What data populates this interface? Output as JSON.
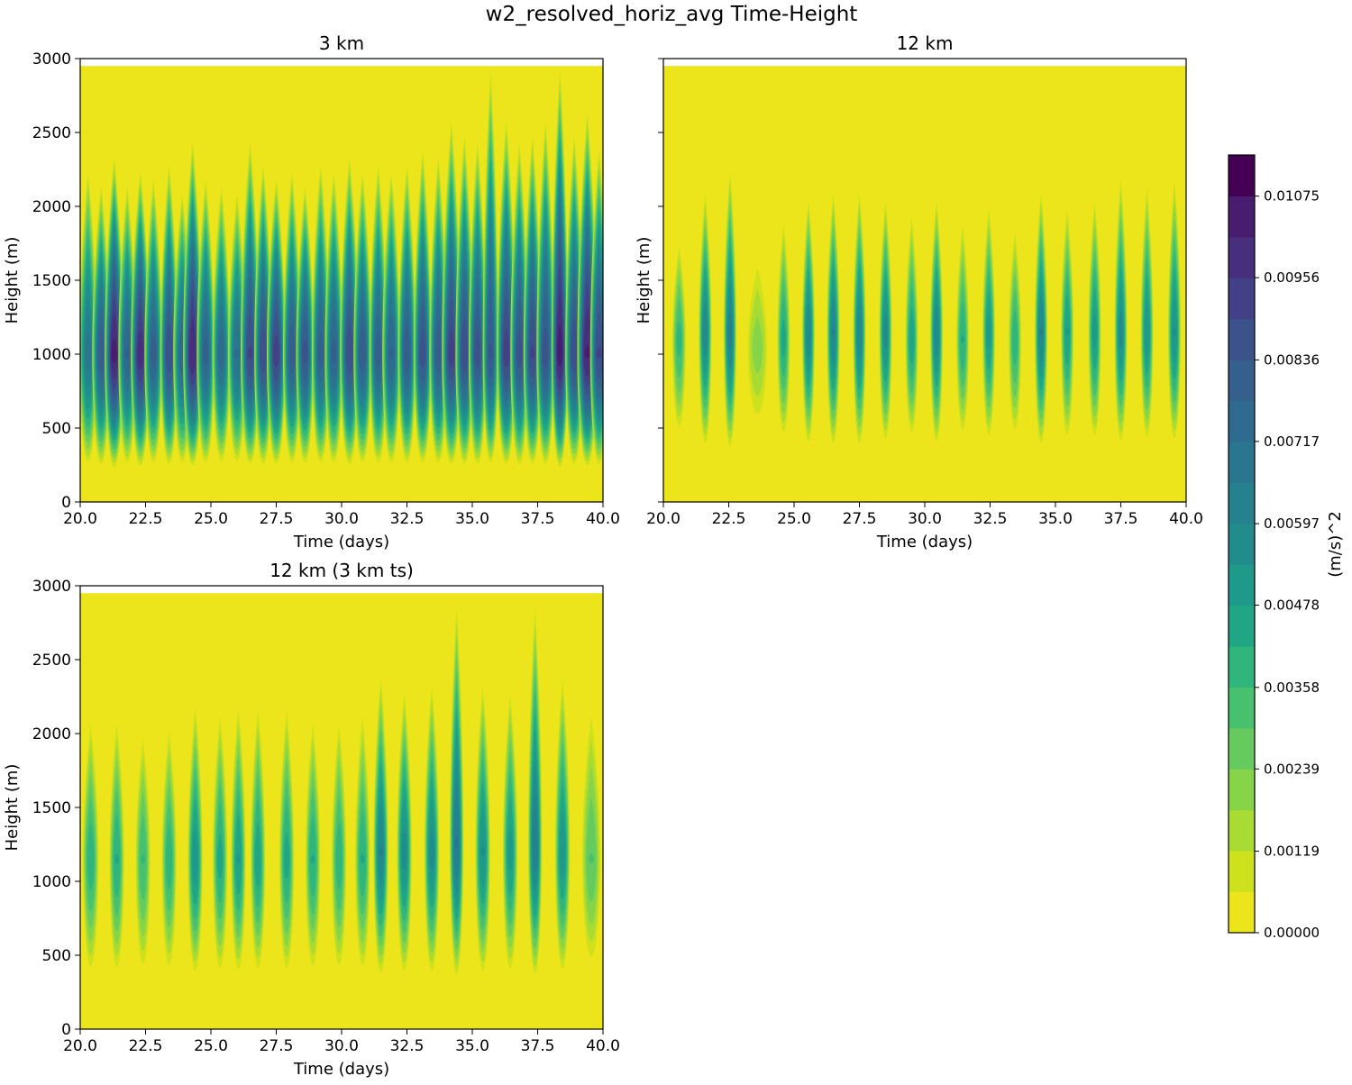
{
  "figure_title": "w2_resolved_horiz_avg Time-Height",
  "chart_data": [
    {
      "type": "heatmap",
      "title": "3 km",
      "xlabel": "Time (days)",
      "ylabel": "Height (m)",
      "xlim": [
        20.0,
        40.0
      ],
      "ylim": [
        0,
        3000
      ],
      "data_top": 2950,
      "xticks": [
        "20.0",
        "22.5",
        "25.0",
        "27.5",
        "30.0",
        "32.5",
        "35.0",
        "37.5",
        "40.0"
      ],
      "yticks": [
        "0",
        "500",
        "1000",
        "1500",
        "2000",
        "2500",
        "3000"
      ],
      "show_yticklabels": true,
      "base_level": 0.00045,
      "cycles": [
        {
          "t": 20.3,
          "w": 0.16,
          "amp": 0.0068,
          "bottom": 260,
          "top": 2250,
          "center": 1000
        },
        {
          "t": 20.8,
          "w": 0.16,
          "amp": 0.0082,
          "bottom": 250,
          "top": 2150,
          "center": 1000
        },
        {
          "t": 21.3,
          "w": 0.17,
          "amp": 0.0103,
          "bottom": 230,
          "top": 2350,
          "center": 1000
        },
        {
          "t": 21.8,
          "w": 0.16,
          "amp": 0.0078,
          "bottom": 260,
          "top": 2150,
          "center": 1000
        },
        {
          "t": 22.3,
          "w": 0.17,
          "amp": 0.0099,
          "bottom": 240,
          "top": 2250,
          "center": 1000
        },
        {
          "t": 22.8,
          "w": 0.16,
          "amp": 0.008,
          "bottom": 260,
          "top": 2200,
          "center": 1000
        },
        {
          "t": 23.4,
          "w": 0.16,
          "amp": 0.0088,
          "bottom": 250,
          "top": 2300,
          "center": 1000
        },
        {
          "t": 23.9,
          "w": 0.16,
          "amp": 0.0076,
          "bottom": 260,
          "top": 2100,
          "center": 1000
        },
        {
          "t": 24.3,
          "w": 0.17,
          "amp": 0.0101,
          "bottom": 240,
          "top": 2450,
          "center": 1000
        },
        {
          "t": 24.8,
          "w": 0.16,
          "amp": 0.0079,
          "bottom": 260,
          "top": 2200,
          "center": 1000
        },
        {
          "t": 25.4,
          "w": 0.16,
          "amp": 0.0075,
          "bottom": 270,
          "top": 2150,
          "center": 1000
        },
        {
          "t": 26.0,
          "w": 0.16,
          "amp": 0.0072,
          "bottom": 270,
          "top": 2100,
          "center": 1000
        },
        {
          "t": 26.5,
          "w": 0.17,
          "amp": 0.009,
          "bottom": 250,
          "top": 2450,
          "center": 1000
        },
        {
          "t": 27.0,
          "w": 0.16,
          "amp": 0.0088,
          "bottom": 250,
          "top": 2300,
          "center": 1000
        },
        {
          "t": 27.5,
          "w": 0.17,
          "amp": 0.0092,
          "bottom": 250,
          "top": 2200,
          "center": 1000
        },
        {
          "t": 28.1,
          "w": 0.16,
          "amp": 0.0082,
          "bottom": 260,
          "top": 2250,
          "center": 1000
        },
        {
          "t": 28.6,
          "w": 0.16,
          "amp": 0.0085,
          "bottom": 260,
          "top": 2150,
          "center": 1000
        },
        {
          "t": 29.2,
          "w": 0.16,
          "amp": 0.008,
          "bottom": 260,
          "top": 2300,
          "center": 1000
        },
        {
          "t": 29.7,
          "w": 0.16,
          "amp": 0.0079,
          "bottom": 260,
          "top": 2250,
          "center": 1000
        },
        {
          "t": 30.3,
          "w": 0.17,
          "amp": 0.0088,
          "bottom": 250,
          "top": 2350,
          "center": 1000
        },
        {
          "t": 30.8,
          "w": 0.16,
          "amp": 0.0082,
          "bottom": 260,
          "top": 2250,
          "center": 1000
        },
        {
          "t": 31.4,
          "w": 0.16,
          "amp": 0.008,
          "bottom": 260,
          "top": 2300,
          "center": 1000
        },
        {
          "t": 31.9,
          "w": 0.16,
          "amp": 0.0078,
          "bottom": 260,
          "top": 2250,
          "center": 1000
        },
        {
          "t": 32.5,
          "w": 0.16,
          "amp": 0.0082,
          "bottom": 260,
          "top": 2300,
          "center": 1000
        },
        {
          "t": 33.1,
          "w": 0.16,
          "amp": 0.0086,
          "bottom": 260,
          "top": 2400,
          "center": 1000
        },
        {
          "t": 33.7,
          "w": 0.16,
          "amp": 0.0082,
          "bottom": 260,
          "top": 2350,
          "center": 1000
        },
        {
          "t": 34.2,
          "w": 0.17,
          "amp": 0.0092,
          "bottom": 250,
          "top": 2600,
          "center": 1000
        },
        {
          "t": 34.7,
          "w": 0.16,
          "amp": 0.0088,
          "bottom": 250,
          "top": 2500,
          "center": 1000
        },
        {
          "t": 35.2,
          "w": 0.16,
          "amp": 0.0086,
          "bottom": 250,
          "top": 2450,
          "center": 1000
        },
        {
          "t": 35.7,
          "w": 0.14,
          "amp": 0.0084,
          "bottom": 260,
          "top": 2940,
          "center": 1000
        },
        {
          "t": 36.3,
          "w": 0.17,
          "amp": 0.0092,
          "bottom": 250,
          "top": 2600,
          "center": 1000
        },
        {
          "t": 36.8,
          "w": 0.16,
          "amp": 0.0086,
          "bottom": 250,
          "top": 2450,
          "center": 1000
        },
        {
          "t": 37.3,
          "w": 0.16,
          "amp": 0.009,
          "bottom": 250,
          "top": 2500,
          "center": 1000
        },
        {
          "t": 37.8,
          "w": 0.16,
          "amp": 0.0086,
          "bottom": 250,
          "top": 2600,
          "center": 1000
        },
        {
          "t": 38.35,
          "w": 0.15,
          "amp": 0.0104,
          "bottom": 230,
          "top": 2940,
          "center": 1000
        },
        {
          "t": 38.9,
          "w": 0.16,
          "amp": 0.0088,
          "bottom": 250,
          "top": 2500,
          "center": 1000
        },
        {
          "t": 39.4,
          "w": 0.18,
          "amp": 0.0102,
          "bottom": 240,
          "top": 2650,
          "center": 1000
        },
        {
          "t": 39.85,
          "w": 0.16,
          "amp": 0.009,
          "bottom": 250,
          "top": 2400,
          "center": 1000
        }
      ]
    },
    {
      "type": "heatmap",
      "title": "12 km",
      "xlabel": "Time (days)",
      "ylabel": "Height (m)",
      "xlim": [
        20.0,
        40.0
      ],
      "ylim": [
        0,
        3000
      ],
      "data_top": 2950,
      "xticks": [
        "20.0",
        "22.5",
        "25.0",
        "27.5",
        "30.0",
        "32.5",
        "35.0",
        "37.5",
        "40.0"
      ],
      "yticks": [
        "0",
        "500",
        "1000",
        "1500",
        "2000",
        "2500",
        "3000"
      ],
      "show_yticklabels": false,
      "base_level": 0.0,
      "cycles": [
        {
          "t": 20.6,
          "w": 0.13,
          "amp": 0.0038,
          "bottom": 450,
          "top": 1800,
          "center": 1100
        },
        {
          "t": 21.6,
          "w": 0.12,
          "amp": 0.0058,
          "bottom": 350,
          "top": 2150,
          "center": 1150
        },
        {
          "t": 22.55,
          "w": 0.12,
          "amp": 0.0062,
          "bottom": 330,
          "top": 2300,
          "center": 1150
        },
        {
          "t": 23.6,
          "w": 0.2,
          "amp": 0.0021,
          "bottom": 500,
          "top": 1700,
          "center": 1050
        },
        {
          "t": 24.6,
          "w": 0.12,
          "amp": 0.0044,
          "bottom": 420,
          "top": 1950,
          "center": 1100
        },
        {
          "t": 25.55,
          "w": 0.12,
          "amp": 0.0058,
          "bottom": 360,
          "top": 2100,
          "center": 1150
        },
        {
          "t": 26.5,
          "w": 0.12,
          "amp": 0.006,
          "bottom": 350,
          "top": 2150,
          "center": 1150
        },
        {
          "t": 27.5,
          "w": 0.12,
          "amp": 0.0059,
          "bottom": 350,
          "top": 2150,
          "center": 1150
        },
        {
          "t": 28.5,
          "w": 0.12,
          "amp": 0.0056,
          "bottom": 380,
          "top": 2100,
          "center": 1150
        },
        {
          "t": 29.5,
          "w": 0.12,
          "amp": 0.0046,
          "bottom": 420,
          "top": 2000,
          "center": 1100
        },
        {
          "t": 30.45,
          "w": 0.12,
          "amp": 0.0058,
          "bottom": 360,
          "top": 2100,
          "center": 1150
        },
        {
          "t": 31.45,
          "w": 0.12,
          "amp": 0.0042,
          "bottom": 430,
          "top": 1950,
          "center": 1100
        },
        {
          "t": 32.45,
          "w": 0.12,
          "amp": 0.005,
          "bottom": 400,
          "top": 2050,
          "center": 1150
        },
        {
          "t": 33.45,
          "w": 0.12,
          "amp": 0.004,
          "bottom": 430,
          "top": 1900,
          "center": 1100
        },
        {
          "t": 34.45,
          "w": 0.12,
          "amp": 0.006,
          "bottom": 350,
          "top": 2150,
          "center": 1150
        },
        {
          "t": 35.45,
          "w": 0.12,
          "amp": 0.0048,
          "bottom": 400,
          "top": 2050,
          "center": 1150
        },
        {
          "t": 36.5,
          "w": 0.12,
          "amp": 0.005,
          "bottom": 400,
          "top": 2100,
          "center": 1150
        },
        {
          "t": 37.5,
          "w": 0.12,
          "amp": 0.0056,
          "bottom": 370,
          "top": 2250,
          "center": 1150
        },
        {
          "t": 38.5,
          "w": 0.12,
          "amp": 0.0052,
          "bottom": 390,
          "top": 2200,
          "center": 1150
        },
        {
          "t": 39.55,
          "w": 0.12,
          "amp": 0.0054,
          "bottom": 380,
          "top": 2250,
          "center": 1150
        }
      ]
    },
    {
      "type": "heatmap",
      "title": "12 km (3 km ts)",
      "xlabel": "Time (days)",
      "ylabel": "Height (m)",
      "xlim": [
        20.0,
        40.0
      ],
      "ylim": [
        0,
        3000
      ],
      "data_top": 2950,
      "xticks": [
        "20.0",
        "22.5",
        "25.0",
        "27.5",
        "30.0",
        "32.5",
        "35.0",
        "37.5",
        "40.0"
      ],
      "yticks": [
        "0",
        "500",
        "1000",
        "1500",
        "2000",
        "2500",
        "3000"
      ],
      "show_yticklabels": true,
      "base_level": 0.0,
      "cycles": [
        {
          "t": 20.4,
          "w": 0.15,
          "amp": 0.004,
          "bottom": 350,
          "top": 2150,
          "center": 1150
        },
        {
          "t": 21.4,
          "w": 0.14,
          "amp": 0.0042,
          "bottom": 350,
          "top": 2150,
          "center": 1150
        },
        {
          "t": 22.4,
          "w": 0.14,
          "amp": 0.0036,
          "bottom": 360,
          "top": 2050,
          "center": 1150
        },
        {
          "t": 23.4,
          "w": 0.14,
          "amp": 0.004,
          "bottom": 360,
          "top": 2100,
          "center": 1150
        },
        {
          "t": 24.4,
          "w": 0.14,
          "amp": 0.0052,
          "bottom": 340,
          "top": 2250,
          "center": 1150
        },
        {
          "t": 25.35,
          "w": 0.14,
          "amp": 0.0044,
          "bottom": 350,
          "top": 2200,
          "center": 1150
        },
        {
          "t": 26.05,
          "w": 0.14,
          "amp": 0.0048,
          "bottom": 350,
          "top": 2250,
          "center": 1150
        },
        {
          "t": 26.8,
          "w": 0.14,
          "amp": 0.0046,
          "bottom": 350,
          "top": 2250,
          "center": 1150
        },
        {
          "t": 27.9,
          "w": 0.14,
          "amp": 0.0044,
          "bottom": 350,
          "top": 2250,
          "center": 1150
        },
        {
          "t": 28.9,
          "w": 0.14,
          "amp": 0.0042,
          "bottom": 360,
          "top": 2150,
          "center": 1150
        },
        {
          "t": 29.9,
          "w": 0.14,
          "amp": 0.004,
          "bottom": 360,
          "top": 2150,
          "center": 1150
        },
        {
          "t": 30.8,
          "w": 0.14,
          "amp": 0.0042,
          "bottom": 360,
          "top": 2200,
          "center": 1150
        },
        {
          "t": 31.5,
          "w": 0.14,
          "amp": 0.006,
          "bottom": 330,
          "top": 2450,
          "center": 1200
        },
        {
          "t": 32.4,
          "w": 0.14,
          "amp": 0.0056,
          "bottom": 340,
          "top": 2350,
          "center": 1200
        },
        {
          "t": 33.45,
          "w": 0.14,
          "amp": 0.0056,
          "bottom": 340,
          "top": 2400,
          "center": 1200
        },
        {
          "t": 34.4,
          "w": 0.13,
          "amp": 0.0066,
          "bottom": 320,
          "top": 2940,
          "center": 1250
        },
        {
          "t": 35.4,
          "w": 0.14,
          "amp": 0.0054,
          "bottom": 340,
          "top": 2400,
          "center": 1200
        },
        {
          "t": 36.45,
          "w": 0.14,
          "amp": 0.005,
          "bottom": 350,
          "top": 2350,
          "center": 1200
        },
        {
          "t": 37.4,
          "w": 0.13,
          "amp": 0.0064,
          "bottom": 320,
          "top": 2940,
          "center": 1250
        },
        {
          "t": 38.45,
          "w": 0.14,
          "amp": 0.0052,
          "bottom": 350,
          "top": 2450,
          "center": 1200
        },
        {
          "t": 39.55,
          "w": 0.18,
          "amp": 0.003,
          "bottom": 400,
          "top": 2250,
          "center": 1150
        }
      ]
    }
  ],
  "colorbar": {
    "label": "(m/s)^2",
    "vmin": 0.0,
    "vmax": 0.01135,
    "n_levels": 19,
    "tick_values": [
      0.0,
      0.00119,
      0.00239,
      0.00358,
      0.00478,
      0.00597,
      0.00717,
      0.00836,
      0.00956,
      0.01075
    ],
    "tick_labels": [
      "0.00000",
      "0.00119",
      "0.00239",
      "0.00358",
      "0.00478",
      "0.00597",
      "0.00717",
      "0.00836",
      "0.00956",
      "0.01075"
    ],
    "colors": [
      "#ece51b",
      "#cde11d",
      "#a8db34",
      "#86d549",
      "#65cb5e",
      "#48c16e",
      "#30b57c",
      "#21a685",
      "#1f9a8a",
      "#228c8d",
      "#26818e",
      "#2a768e",
      "#2f6b8e",
      "#355f8d",
      "#3b528b",
      "#424086",
      "#472f7d",
      "#481d6f",
      "#440154"
    ]
  }
}
